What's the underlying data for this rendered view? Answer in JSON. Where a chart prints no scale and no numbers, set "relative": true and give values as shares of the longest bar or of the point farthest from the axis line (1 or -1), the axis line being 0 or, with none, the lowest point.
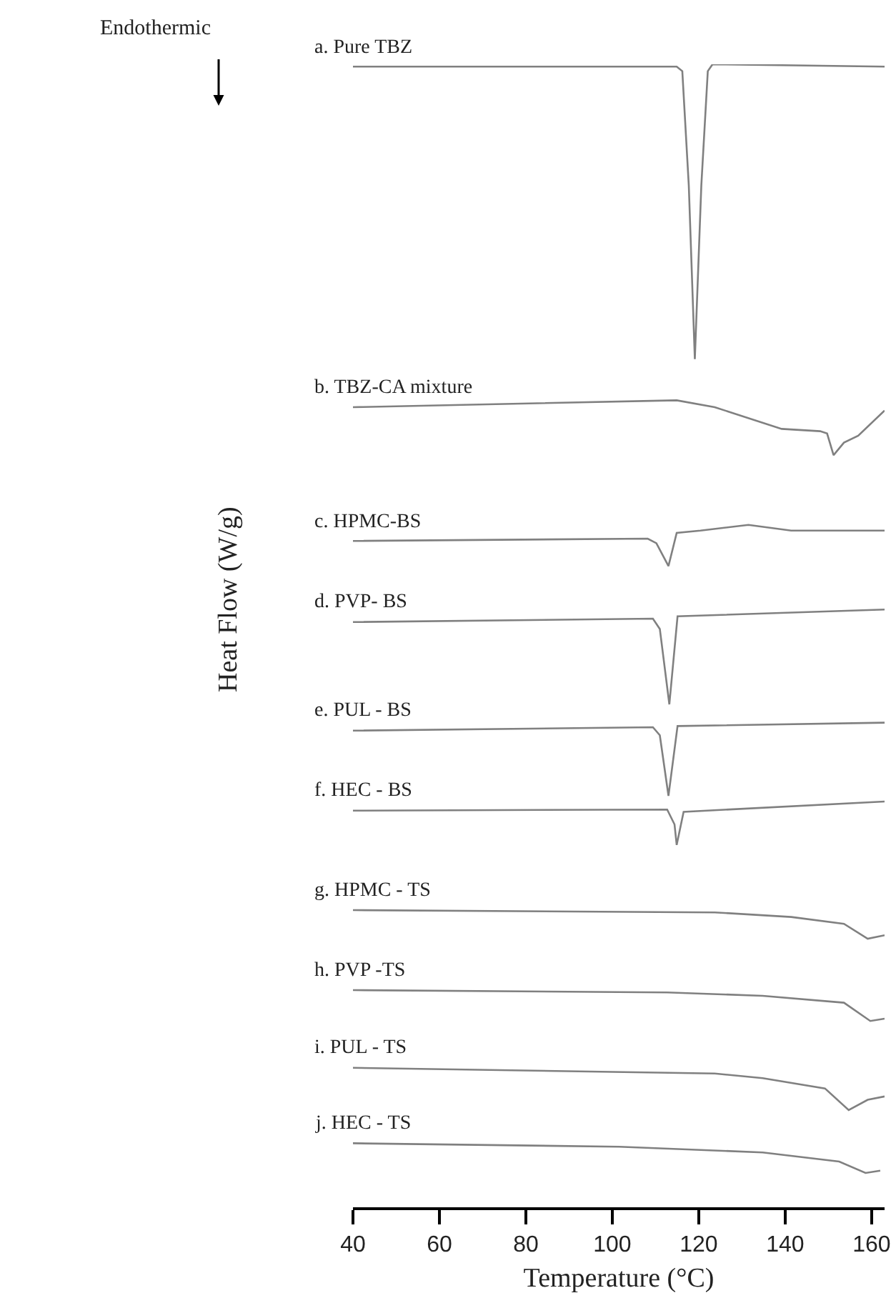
{
  "chart_data": {
    "type": "line",
    "relative": true,
    "xlabel": "Temperature (°C)",
    "ylabel": "Heat Flow (W/g)",
    "annotations": [
      "Endothermic"
    ],
    "xlim": [
      40,
      163
    ],
    "xticks": [
      40,
      60,
      80,
      100,
      120,
      140,
      160
    ],
    "marker": "none",
    "line_style": "solid",
    "series": [
      {
        "name": "a. Pure TBZ",
        "color": "#808080",
        "x": [
          40,
          114.9,
          116.2,
          117.7,
          119.1,
          120.6,
          122.1,
          123.2,
          163
        ],
        "values": [
          0.998,
          0.998,
          0.994,
          0.894,
          0.742,
          0.894,
          0.994,
          1.0,
          0.998
        ]
      },
      {
        "name": "b. TBZ-CA mixture",
        "color": "#808080",
        "x": [
          40,
          114.9,
          123.7,
          139.2,
          148.1,
          149.7,
          151.2,
          153.6,
          156.9,
          163
        ],
        "values": [
          0.7,
          0.706,
          0.7,
          0.681,
          0.679,
          0.677,
          0.658,
          0.669,
          0.675,
          0.697
        ]
      },
      {
        "name": "c. HPMC-BS",
        "color": "#808080",
        "x": [
          40,
          108.2,
          110.2,
          113.0,
          114.9,
          120.4,
          131.5,
          141.4,
          163
        ],
        "values": [
          0.583,
          0.585,
          0.581,
          0.561,
          0.59,
          0.592,
          0.597,
          0.592,
          0.592
        ]
      },
      {
        "name": "d. PVP- BS",
        "color": "#808080",
        "x": [
          40,
          109.4,
          111.0,
          113.2,
          115.1,
          163
        ],
        "values": [
          0.512,
          0.515,
          0.506,
          0.44,
          0.517,
          0.523
        ]
      },
      {
        "name": "e. PUL - BS",
        "color": "#808080",
        "x": [
          40,
          109.4,
          111.0,
          113.0,
          115.1,
          163
        ],
        "values": [
          0.417,
          0.42,
          0.413,
          0.36,
          0.421,
          0.424
        ]
      },
      {
        "name": "f. HEC - BS",
        "color": "#808080",
        "x": [
          40,
          112.7,
          114.4,
          114.9,
          116.5,
          163
        ],
        "values": [
          0.347,
          0.348,
          0.335,
          0.317,
          0.346,
          0.355
        ]
      },
      {
        "name": "g. HPMC - TS",
        "color": "#808080",
        "x": [
          40,
          123.7,
          141.4,
          153.6,
          159.1,
          163
        ],
        "values": [
          0.26,
          0.258,
          0.254,
          0.248,
          0.235,
          0.238
        ]
      },
      {
        "name": "h. PVP -TS",
        "color": "#808080",
        "x": [
          40,
          112.7,
          134.8,
          153.6,
          159.7,
          163
        ],
        "values": [
          0.19,
          0.188,
          0.185,
          0.179,
          0.163,
          0.165
        ]
      },
      {
        "name": "i. PUL - TS",
        "color": "#808080",
        "x": [
          40,
          123.7,
          134.8,
          149.2,
          154.7,
          159.1,
          163
        ],
        "values": [
          0.122,
          0.117,
          0.113,
          0.104,
          0.085,
          0.094,
          0.097
        ]
      },
      {
        "name": "j. HEC - TS",
        "color": "#808080",
        "x": [
          40,
          101.6,
          134.8,
          152.5,
          158.6,
          162
        ],
        "values": [
          0.056,
          0.053,
          0.048,
          0.04,
          0.03,
          0.032
        ]
      }
    ]
  }
}
